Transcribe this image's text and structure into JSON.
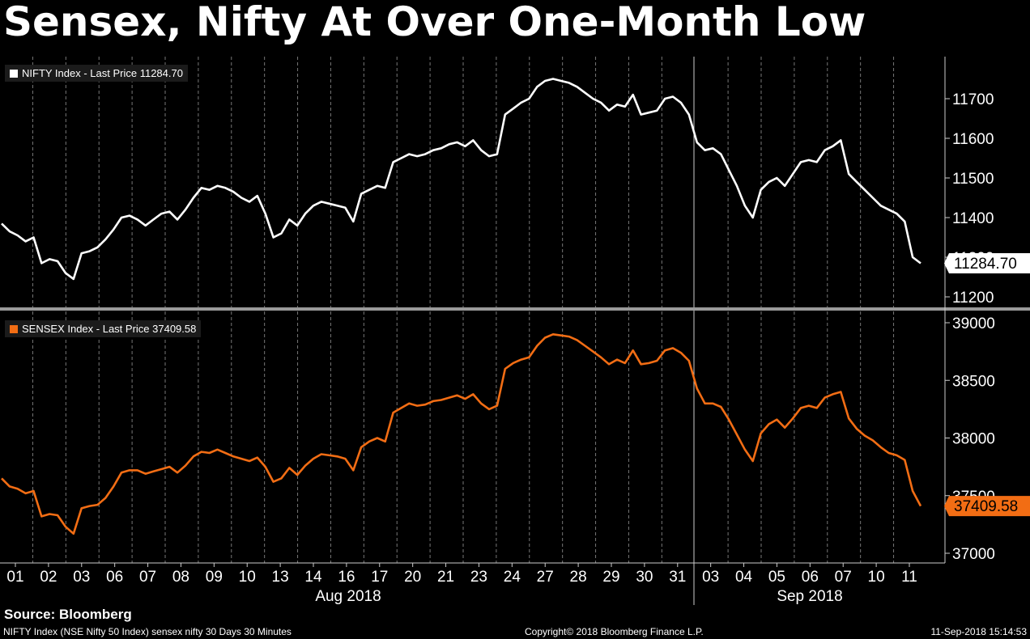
{
  "title": "Sensex, Nifty At Over One-Month Low",
  "source": "Source:  Bloomberg",
  "footer": {
    "left": "NIFTY Index (NSE Nifty 50 Index) sensex nifty 30 Days 30 Minutes",
    "center": "Copyright© 2018 Bloomberg Finance L.P.",
    "right": "11-Sep-2018 15:14:53"
  },
  "colors": {
    "nifty": "#ffffff",
    "sensex": "#f26d14",
    "background": "#000000",
    "grid": "#777777"
  },
  "chart_data": {
    "type": "line",
    "x_tick_labels": [
      "01",
      "02",
      "03",
      "06",
      "07",
      "08",
      "09",
      "10",
      "13",
      "14",
      "16",
      "17",
      "20",
      "21",
      "23",
      "24",
      "27",
      "28",
      "29",
      "30",
      "31",
      "03",
      "04",
      "05",
      "06",
      "07",
      "10",
      "11"
    ],
    "month_labels": [
      "Aug 2018",
      "Sep 2018"
    ],
    "panels": [
      {
        "name": "nifty",
        "legend": "NIFTY Index - Last Price 11284.70",
        "last_label": "11284.70",
        "ylim": [
          11170,
          11790
        ],
        "y_ticks": [
          11200,
          11300,
          11400,
          11500,
          11600,
          11700
        ],
        "y_tick_labels": [
          "11200",
          "11300",
          "11400",
          "11500",
          "11600",
          "11700"
        ],
        "values": [
          11385,
          11365,
          11355,
          11340,
          11350,
          11285,
          11295,
          11290,
          11260,
          11245,
          11310,
          11315,
          11325,
          11345,
          11370,
          11400,
          11405,
          11395,
          11380,
          11395,
          11410,
          11415,
          11395,
          11420,
          11450,
          11475,
          11470,
          11480,
          11475,
          11465,
          11450,
          11440,
          11455,
          11410,
          11350,
          11360,
          11395,
          11380,
          11410,
          11430,
          11440,
          11435,
          11430,
          11425,
          11390,
          11460,
          11470,
          11480,
          11475,
          11540,
          11550,
          11560,
          11555,
          11560,
          11570,
          11575,
          11585,
          11590,
          11580,
          11595,
          11570,
          11555,
          11560,
          11660,
          11675,
          11690,
          11700,
          11730,
          11745,
          11750,
          11745,
          11740,
          11730,
          11715,
          11700,
          11690,
          11670,
          11685,
          11680,
          11710,
          11660,
          11665,
          11670,
          11700,
          11705,
          11690,
          11660,
          11590,
          11570,
          11575,
          11560,
          11520,
          11480,
          11430,
          11400,
          11470,
          11490,
          11500,
          11480,
          11510,
          11540,
          11545,
          11540,
          11570,
          11580,
          11595,
          11510,
          11490,
          11470,
          11450,
          11430,
          11420,
          11410,
          11390,
          11300,
          11284.7
        ]
      },
      {
        "name": "sensex",
        "legend": "SENSEX Index - Last Price 37409.58",
        "last_label": "37409.58",
        "ylim": [
          36950,
          39100
        ],
        "y_ticks": [
          37000,
          37500,
          38000,
          38500,
          39000
        ],
        "y_tick_labels": [
          "37000",
          "37500",
          "38000",
          "38500",
          "39000"
        ],
        "values": [
          37650,
          37580,
          37560,
          37520,
          37540,
          37320,
          37340,
          37330,
          37230,
          37170,
          37390,
          37410,
          37420,
          37480,
          37580,
          37700,
          37720,
          37720,
          37690,
          37710,
          37730,
          37750,
          37700,
          37760,
          37840,
          37880,
          37870,
          37900,
          37870,
          37840,
          37820,
          37800,
          37830,
          37750,
          37620,
          37650,
          37740,
          37680,
          37760,
          37820,
          37860,
          37850,
          37840,
          37820,
          37720,
          37920,
          37970,
          38000,
          37970,
          38220,
          38260,
          38300,
          38280,
          38290,
          38320,
          38330,
          38350,
          38370,
          38340,
          38380,
          38300,
          38250,
          38280,
          38600,
          38650,
          38680,
          38700,
          38800,
          38870,
          38900,
          38890,
          38880,
          38850,
          38800,
          38750,
          38700,
          38640,
          38680,
          38650,
          38760,
          38640,
          38650,
          38670,
          38760,
          38780,
          38740,
          38670,
          38430,
          38300,
          38300,
          38270,
          38160,
          38030,
          37900,
          37800,
          38040,
          38120,
          38160,
          38090,
          38170,
          38260,
          38280,
          38260,
          38350,
          38380,
          38400,
          38170,
          38080,
          38020,
          37980,
          37920,
          37870,
          37850,
          37810,
          37540,
          37409.58
        ]
      }
    ]
  }
}
